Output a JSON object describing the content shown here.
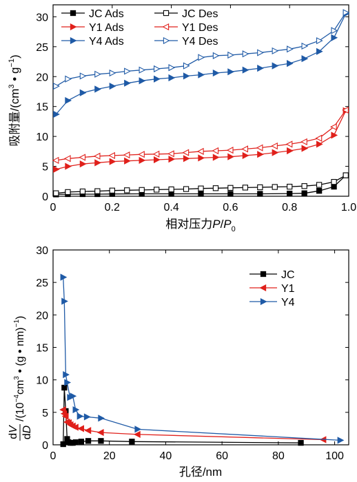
{
  "chart_data": [
    {
      "type": "line",
      "xlabel": "相对压力P/P0",
      "ylabel": "吸附量/(cm³·g⁻¹)",
      "xlim": [
        0.0,
        1.0
      ],
      "ylim": [
        0,
        32
      ],
      "x_ticks": [
        0.0,
        0.2,
        0.4,
        0.6,
        0.8,
        1.0
      ],
      "x_tick_labels": [
        "0",
        "0.2",
        "0.4",
        "0.6",
        "0.8",
        "1.0"
      ],
      "y_ticks": [
        0,
        5,
        10,
        15,
        20,
        25,
        30
      ],
      "y_tick_labels": [
        "0",
        "5",
        "10",
        "15",
        "20",
        "25",
        "30"
      ],
      "legend_position": "top-left, two columns",
      "series": [
        {
          "name": "JC Ads",
          "color": "#000000",
          "marker": "square-filled",
          "x": [
            0.01,
            0.05,
            0.1,
            0.15,
            0.2,
            0.3,
            0.4,
            0.5,
            0.6,
            0.7,
            0.8,
            0.85,
            0.9,
            0.95,
            0.99
          ],
          "y": [
            0.3,
            0.35,
            0.35,
            0.35,
            0.38,
            0.4,
            0.4,
            0.4,
            0.4,
            0.4,
            0.45,
            0.5,
            0.9,
            1.6,
            3.5
          ]
        },
        {
          "name": "JC Des",
          "color": "#000000",
          "marker": "square-open",
          "x": [
            0.01,
            0.05,
            0.1,
            0.15,
            0.2,
            0.25,
            0.3,
            0.35,
            0.4,
            0.45,
            0.5,
            0.55,
            0.6,
            0.65,
            0.7,
            0.75,
            0.8,
            0.85,
            0.9,
            0.95,
            0.99
          ],
          "y": [
            0.5,
            0.7,
            0.8,
            0.85,
            0.95,
            1.0,
            1.05,
            1.1,
            1.15,
            1.2,
            1.3,
            1.35,
            1.4,
            1.45,
            1.5,
            1.55,
            1.6,
            1.7,
            1.9,
            2.4,
            3.5
          ]
        },
        {
          "name": "Y1 Ads",
          "color": "#e0201b",
          "marker": "triangle-right-filled",
          "x": [
            0.01,
            0.05,
            0.1,
            0.15,
            0.2,
            0.25,
            0.3,
            0.35,
            0.4,
            0.45,
            0.5,
            0.55,
            0.6,
            0.65,
            0.7,
            0.75,
            0.8,
            0.85,
            0.9,
            0.95,
            0.99
          ],
          "y": [
            4.5,
            5.0,
            5.4,
            5.6,
            5.8,
            5.9,
            6.0,
            6.1,
            6.2,
            6.3,
            6.4,
            6.5,
            6.6,
            6.8,
            7.0,
            7.3,
            7.6,
            8.0,
            8.7,
            10.2,
            14.3
          ]
        },
        {
          "name": "Y1 Des",
          "color": "#e0201b",
          "marker": "triangle-left-open",
          "x": [
            0.01,
            0.05,
            0.1,
            0.15,
            0.2,
            0.25,
            0.3,
            0.35,
            0.4,
            0.45,
            0.5,
            0.55,
            0.6,
            0.65,
            0.7,
            0.75,
            0.8,
            0.85,
            0.9,
            0.95,
            0.99
          ],
          "y": [
            6.0,
            6.3,
            6.5,
            6.7,
            6.8,
            6.9,
            7.0,
            7.05,
            7.1,
            7.3,
            7.5,
            7.6,
            7.7,
            7.9,
            8.1,
            8.4,
            8.7,
            9.1,
            9.7,
            11.6,
            14.4
          ]
        },
        {
          "name": "Y4 Ads",
          "color": "#1f5aa6",
          "marker": "triangle-right-filled",
          "x": [
            0.01,
            0.05,
            0.1,
            0.15,
            0.2,
            0.25,
            0.3,
            0.35,
            0.4,
            0.45,
            0.5,
            0.55,
            0.6,
            0.65,
            0.7,
            0.75,
            0.8,
            0.85,
            0.9,
            0.95,
            0.99
          ],
          "y": [
            13.7,
            16.0,
            17.3,
            17.9,
            18.4,
            18.9,
            19.3,
            19.6,
            19.8,
            20.1,
            20.3,
            20.6,
            20.8,
            21.1,
            21.4,
            21.8,
            22.2,
            23.0,
            24.2,
            26.5,
            30.5
          ]
        },
        {
          "name": "Y4 Des",
          "color": "#1f5aa6",
          "marker": "triangle-right-open",
          "x": [
            0.01,
            0.05,
            0.1,
            0.15,
            0.2,
            0.25,
            0.3,
            0.35,
            0.4,
            0.45,
            0.5,
            0.55,
            0.6,
            0.65,
            0.7,
            0.75,
            0.8,
            0.85,
            0.9,
            0.95,
            0.99
          ],
          "y": [
            18.4,
            19.6,
            20.1,
            20.4,
            20.6,
            20.9,
            21.1,
            21.3,
            21.5,
            21.8,
            23.2,
            23.5,
            23.6,
            23.8,
            24.0,
            24.3,
            24.6,
            25.1,
            26.0,
            27.7,
            30.7
          ]
        }
      ]
    },
    {
      "type": "line",
      "xlabel": "孔径/nm",
      "ylabel": "dV/dD/(10⁻⁴cm³·(g·nm)⁻¹)",
      "xlim": [
        0,
        105
      ],
      "ylim": [
        0,
        30
      ],
      "x_ticks": [
        0,
        20,
        40,
        60,
        80,
        100
      ],
      "x_tick_labels": [
        "0",
        "20",
        "40",
        "60",
        "80",
        "100"
      ],
      "y_ticks": [
        0,
        5,
        10,
        15,
        20,
        25,
        30
      ],
      "y_tick_labels": [
        "0",
        "5",
        "10",
        "15",
        "20",
        "25",
        "30"
      ],
      "legend_position": "right",
      "series": [
        {
          "name": "JC",
          "color": "#000000",
          "marker": "square-filled",
          "x": [
            3.6,
            4.0,
            4.5,
            5.0,
            5.5,
            6.2,
            7.0,
            8.0,
            10.0,
            12.5,
            17.0,
            28.0,
            88.0
          ],
          "y": [
            0.1,
            8.8,
            5.2,
            0.9,
            0.4,
            0.3,
            0.3,
            0.4,
            0.5,
            0.6,
            0.6,
            0.5,
            0.3
          ]
        },
        {
          "name": "Y1",
          "color": "#e0201b",
          "marker": "triangle-left-filled",
          "x": [
            3.6,
            4.0,
            4.5,
            5.0,
            5.6,
            6.2,
            7.0,
            8.0,
            10.0,
            12.5,
            17.0,
            30.0,
            96.0
          ],
          "y": [
            5.4,
            4.8,
            4.4,
            3.5,
            3.4,
            3.1,
            2.9,
            2.7,
            2.5,
            2.2,
            1.9,
            1.6,
            0.8
          ]
        },
        {
          "name": "Y4",
          "color": "#1f5aa6",
          "marker": "triangle-right-filled",
          "x": [
            3.6,
            4.0,
            4.5,
            5.0,
            6.0,
            7.0,
            8.0,
            9.5,
            12.0,
            17.0,
            30.0,
            102.0
          ],
          "y": [
            25.8,
            22.1,
            10.8,
            9.6,
            7.3,
            7.5,
            5.4,
            4.4,
            4.3,
            4.1,
            2.4,
            0.7
          ]
        }
      ]
    }
  ]
}
